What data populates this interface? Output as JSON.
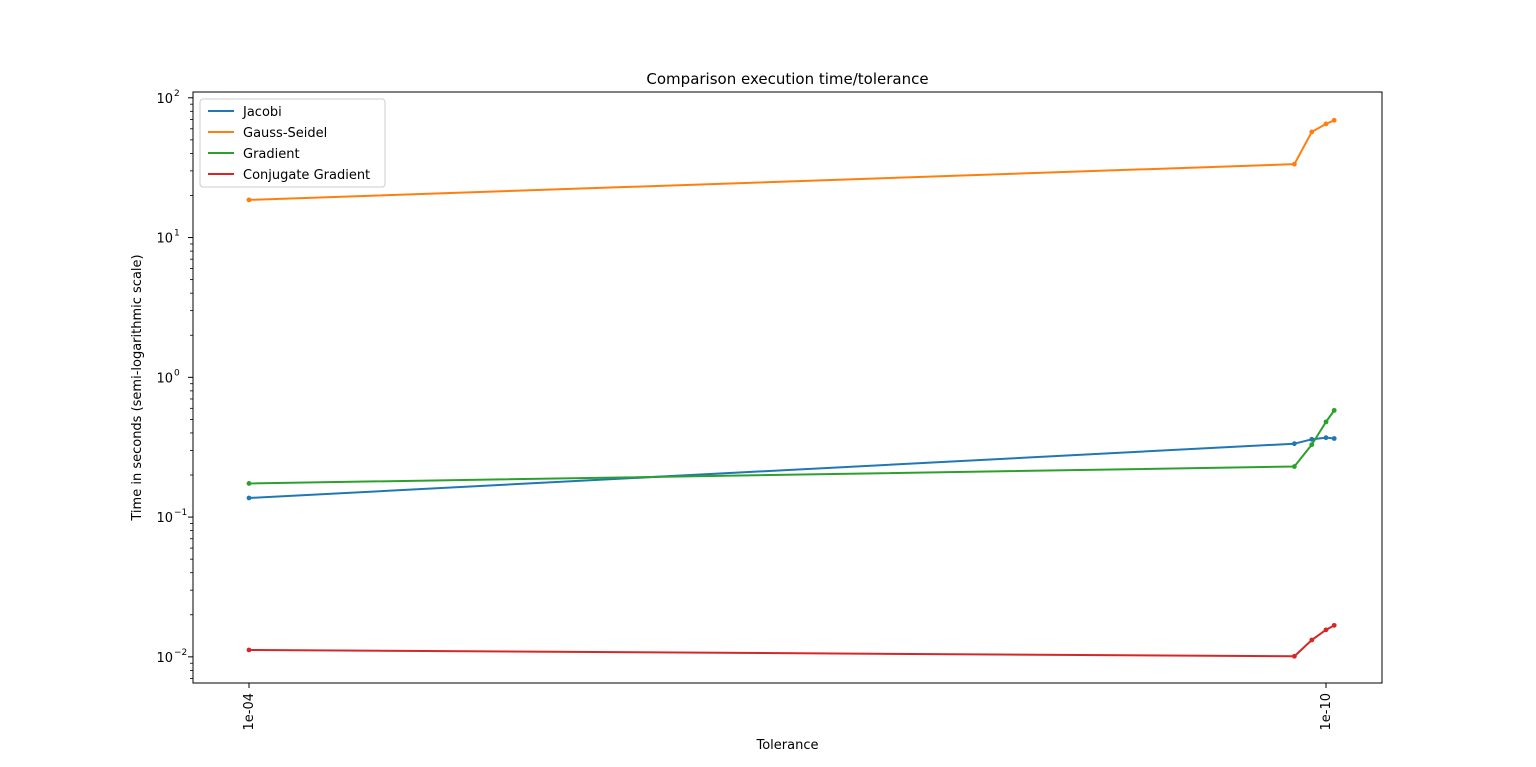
{
  "chart_data": {
    "type": "line",
    "title": "Comparison execution time/tolerance",
    "xlabel": "Tolerance",
    "ylabel": "Time in seconds (semi-logarithmic scale)",
    "y_scale": "log",
    "ylim": [
      0.0065,
      110
    ],
    "x": [
      0.0001,
      1.5e-10,
      1.2e-10,
      1e-10,
      9e-11
    ],
    "x_ticks": [
      {
        "value": 0.0001,
        "label": "1e-04"
      },
      {
        "value": 1e-10,
        "label": "1e-10"
      }
    ],
    "y_ticks": [
      {
        "value": 0.01,
        "base": "10",
        "exp": "−2"
      },
      {
        "value": 0.1,
        "base": "10",
        "exp": "−1"
      },
      {
        "value": 1,
        "base": "10",
        "exp": "0"
      },
      {
        "value": 10,
        "base": "10",
        "exp": "1"
      },
      {
        "value": 100,
        "base": "10",
        "exp": "2"
      }
    ],
    "legend_position": "top-left",
    "grid": false,
    "series": [
      {
        "name": "Jacobi",
        "color": "#1f77b4",
        "values": [
          0.137,
          0.335,
          0.36,
          0.37,
          0.365
        ]
      },
      {
        "name": "Gauss-Seidel",
        "color": "#ff7f0e",
        "values": [
          18.6,
          33.5,
          57,
          65,
          69
        ]
      },
      {
        "name": "Gradient",
        "color": "#2ca02c",
        "values": [
          0.174,
          0.23,
          0.33,
          0.48,
          0.58
        ]
      },
      {
        "name": "Conjugate Gradient",
        "color": "#d62728",
        "values": [
          0.0112,
          0.0101,
          0.0132,
          0.0156,
          0.0168
        ]
      }
    ]
  }
}
